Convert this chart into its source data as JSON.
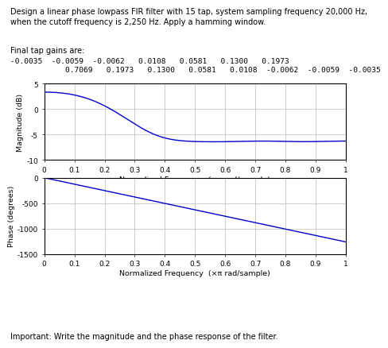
{
  "title_text": "Design a linear phase lowpass FIR filter with 15 tap, system sampling frequency 20,000 Hz,\nwhen the cutoff frequency is 2,250 Hz. Apply a hamming window.",
  "tap_header": "Final tap gains are:",
  "tap_line1": "-0.0035  -0.0059  -0.0062   0.0108   0.0581   0.1300   0.1973",
  "tap_line2": "            0.7069   0.1973   0.1300   0.0581   0.0108  -0.0062  -0.0059  -0.0035",
  "footer_text": "Important: Write the magnitude and the phase response of the filter.",
  "mag_ylabel": "Magnitude (dB)",
  "mag_xlabel": "Normalized Frequency  (×π rad/sample)",
  "phase_ylabel": "Phase (degrees)",
  "phase_xlabel": "Normalized Frequency  (×π rad/sample)",
  "mag_ylim": [
    -10,
    5
  ],
  "mag_yticks": [
    -10,
    -5,
    0,
    5
  ],
  "phase_ylim": [
    -1500,
    0
  ],
  "phase_yticks": [
    -1500,
    -1000,
    -500,
    0
  ],
  "xlim": [
    0,
    1
  ],
  "xticks": [
    0,
    0.1,
    0.2,
    0.3,
    0.4,
    0.5,
    0.6,
    0.7,
    0.8,
    0.9,
    1
  ],
  "xtick_labels": [
    "0",
    "0.1",
    "0.2",
    "0.3",
    "0.4",
    "0.5",
    "0.6",
    "0.7",
    "0.8",
    "0.9",
    "1"
  ],
  "line_color": "#0000cc",
  "background_color": "#ffffff",
  "tap_gains": [
    -0.0035,
    -0.0059,
    -0.0062,
    0.0108,
    0.0581,
    0.13,
    0.1973,
    0.7069,
    0.1973,
    0.13,
    0.0581,
    0.0108,
    -0.0062,
    -0.0059,
    -0.0035
  ]
}
